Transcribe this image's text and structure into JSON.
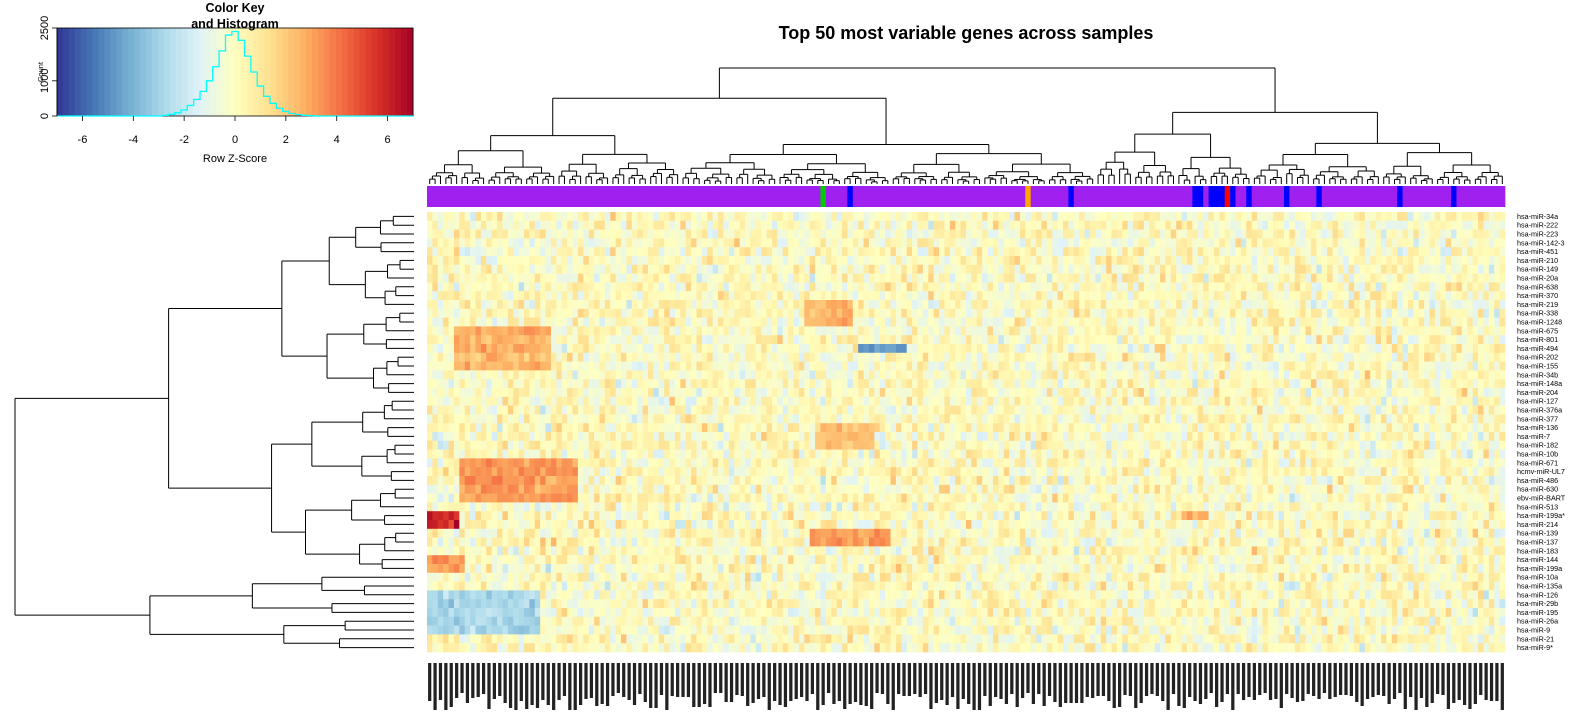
{
  "chart_data": [
    {
      "type": "heatmap",
      "title": "Top 50 most variable genes across samples",
      "row_labels": [
        "hsa-miR-34a",
        "hsa-miR-222",
        "hsa-miR-223",
        "hsa-miR-142-3",
        "hsa-miR-451",
        "hsa-miR-210",
        "hsa-miR-149",
        "hsa-miR-20a",
        "hsa-miR-638",
        "hsa-miR-370",
        "hsa-miR-219",
        "hsa-miR-338",
        "hsa-miR-1248",
        "hsa-miR-675",
        "hsa-miR-801",
        "hsa-miR-494",
        "hsa-miR-202",
        "hsa-miR-155",
        "hsa-miR-34b",
        "hsa-miR-148a",
        "hsa-miR-204",
        "hsa-miR-127",
        "hsa-miR-376a",
        "hsa-miR-377",
        "hsa-miR-136",
        "hsa-miR-7",
        "hsa-miR-182",
        "hsa-miR-10b",
        "hsa-miR-671",
        "hcmv-miR-UL7",
        "hsa-miR-486",
        "hsa-miR-630",
        "ebv-miR-BART",
        "hsa-miR-513",
        "hsa-miR-199a*",
        "hsa-miR-214",
        "hsa-miR-139",
        "hsa-miR-137",
        "hsa-miR-183",
        "hsa-miR-144",
        "hsa-miR-199a",
        "hsa-miR-10a",
        "hsa-miR-135a",
        "hsa-miR-126",
        "hsa-miR-29b",
        "hsa-miR-195",
        "hsa-miR-26a",
        "hsa-miR-9",
        "hsa-miR-21",
        "hsa-miR-9*"
      ],
      "n_columns": 200,
      "color_scale": {
        "name": "RdYlBu (reversed)",
        "low": "#313695",
        "mid": "#ffffbf",
        "high": "#a50026",
        "z_range": [
          -7,
          7
        ]
      },
      "column_side_colors": {
        "default": "#a020f0",
        "markers": [
          {
            "column": 73,
            "color": "#00cd00"
          },
          {
            "column": 78,
            "color": "#0000ff"
          },
          {
            "column": 111,
            "color": "#ffa500"
          },
          {
            "column": 119,
            "color": "#0000ff"
          },
          {
            "column": 142,
            "color": "#0000ff"
          },
          {
            "column": 143,
            "color": "#0000ff"
          },
          {
            "column": 145,
            "color": "#0000ff"
          },
          {
            "column": 146,
            "color": "#0000ff"
          },
          {
            "column": 147,
            "color": "#0000ff"
          },
          {
            "column": 148,
            "color": "#ff0000"
          },
          {
            "column": 149,
            "color": "#0000ff"
          },
          {
            "column": 152,
            "color": "#0000ff"
          },
          {
            "column": 159,
            "color": "#0000ff"
          },
          {
            "column": 165,
            "color": "#0000ff"
          },
          {
            "column": 180,
            "color": "#0000ff"
          },
          {
            "column": 190,
            "color": "#0000ff"
          }
        ]
      },
      "row_dendrogram": true,
      "column_dendrogram": true,
      "legend": "top-left"
    },
    {
      "type": "histogram",
      "title": "Color Key\nand Histogram",
      "xlabel": "Row Z-Score",
      "ylabel": "Count",
      "x_ticks": [
        "-6",
        "-4",
        "-2",
        "0",
        "2",
        "4",
        "6"
      ],
      "y_ticks": [
        "0",
        "1000",
        "2500"
      ],
      "xlim": [
        -7,
        7
      ],
      "ylim": [
        0,
        2500
      ],
      "bin_width": 0.25,
      "bins": [
        {
          "x": -2.75,
          "y": 20
        },
        {
          "x": -2.5,
          "y": 45
        },
        {
          "x": -2.25,
          "y": 90
        },
        {
          "x": -2.0,
          "y": 170
        },
        {
          "x": -1.75,
          "y": 300
        },
        {
          "x": -1.5,
          "y": 470
        },
        {
          "x": -1.25,
          "y": 700
        },
        {
          "x": -1.0,
          "y": 1000
        },
        {
          "x": -0.75,
          "y": 1400
        },
        {
          "x": -0.5,
          "y": 1850
        },
        {
          "x": -0.25,
          "y": 2300
        },
        {
          "x": 0.0,
          "y": 2400
        },
        {
          "x": 0.25,
          "y": 2150
        },
        {
          "x": 0.5,
          "y": 1700
        },
        {
          "x": 0.75,
          "y": 1250
        },
        {
          "x": 1.0,
          "y": 850
        },
        {
          "x": 1.25,
          "y": 560
        },
        {
          "x": 1.5,
          "y": 360
        },
        {
          "x": 1.75,
          "y": 220
        },
        {
          "x": 2.0,
          "y": 130
        },
        {
          "x": 2.25,
          "y": 75
        },
        {
          "x": 2.5,
          "y": 40
        },
        {
          "x": 2.75,
          "y": 20
        },
        {
          "x": 3.0,
          "y": 10
        }
      ]
    }
  ]
}
